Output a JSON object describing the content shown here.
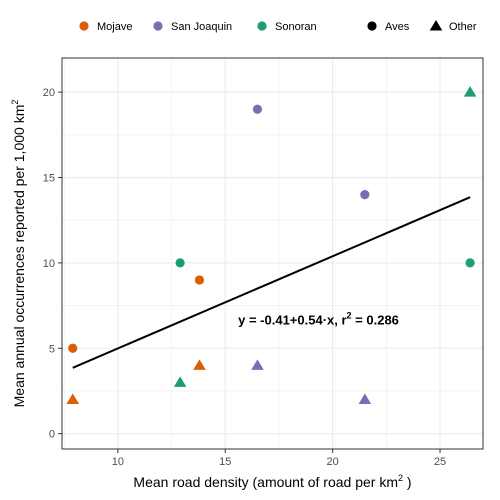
{
  "chart_data": {
    "type": "scatter",
    "xlabel": "Mean road density (amount of road per  km",
    "xlabel_sup": "2",
    "xlabel_tail": " )",
    "ylabel": "Mean annual occurrences reported per 1,000 km",
    "ylabel_sup": "2",
    "xlim": [
      7.4,
      27.0
    ],
    "ylim": [
      -0.9,
      22.0
    ],
    "x_ticks": [
      10,
      15,
      20,
      25
    ],
    "y_ticks": [
      0,
      5,
      10,
      15,
      20
    ],
    "grid": true,
    "legend_position": "top",
    "legend": {
      "colors": [
        {
          "name": "Mojave",
          "color": "#D95F02"
        },
        {
          "name": "San Joaquin",
          "color": "#7570B3"
        },
        {
          "name": "Sonoran",
          "color": "#1B9E77"
        }
      ],
      "shapes": [
        {
          "name": "Aves",
          "shape": "circle"
        },
        {
          "name": "Other",
          "shape": "triangle"
        }
      ]
    },
    "points": [
      {
        "x": 7.9,
        "y": 5,
        "region": "Mojave",
        "group": "Aves"
      },
      {
        "x": 7.9,
        "y": 2,
        "region": "Mojave",
        "group": "Other"
      },
      {
        "x": 13.8,
        "y": 9,
        "region": "Mojave",
        "group": "Aves"
      },
      {
        "x": 13.8,
        "y": 4,
        "region": "Mojave",
        "group": "Other"
      },
      {
        "x": 16.5,
        "y": 19,
        "region": "San Joaquin",
        "group": "Aves"
      },
      {
        "x": 16.5,
        "y": 4,
        "region": "San Joaquin",
        "group": "Other"
      },
      {
        "x": 21.5,
        "y": 14,
        "region": "San Joaquin",
        "group": "Aves"
      },
      {
        "x": 21.5,
        "y": 2,
        "region": "San Joaquin",
        "group": "Other"
      },
      {
        "x": 12.9,
        "y": 10,
        "region": "Sonoran",
        "group": "Aves"
      },
      {
        "x": 12.9,
        "y": 3,
        "region": "Sonoran",
        "group": "Other"
      },
      {
        "x": 26.4,
        "y": 10,
        "region": "Sonoran",
        "group": "Aves"
      },
      {
        "x": 26.4,
        "y": 20,
        "region": "Sonoran",
        "group": "Other"
      }
    ],
    "fit_line": {
      "intercept": -0.41,
      "slope": 0.54,
      "x_range": [
        7.9,
        26.4
      ],
      "color": "#000000"
    },
    "annotation": {
      "prefix": "y = -0.41+0.54·x,  r",
      "sup": "2",
      "suffix": " = 0.286",
      "anchor_x": 15.6,
      "anchor_y": 6.4
    }
  }
}
